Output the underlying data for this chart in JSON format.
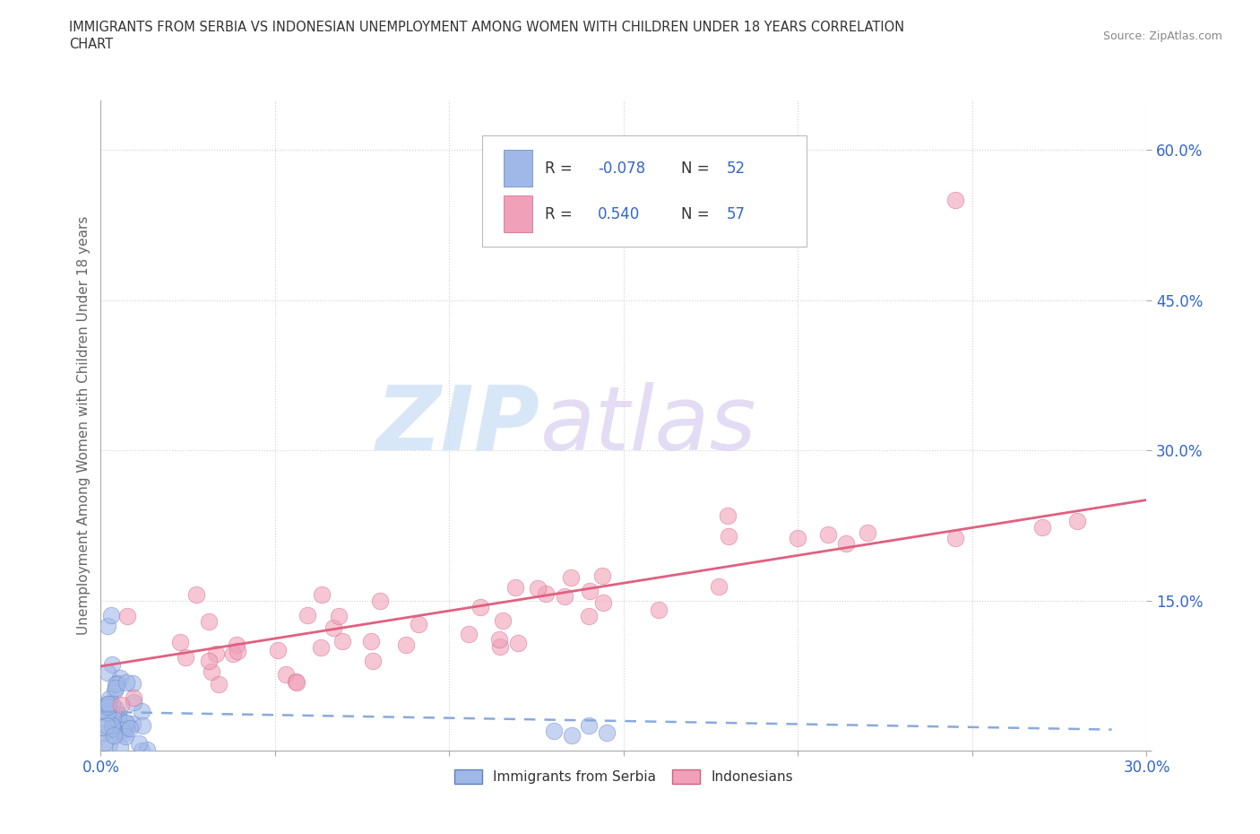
{
  "title_line1": "IMMIGRANTS FROM SERBIA VS INDONESIAN UNEMPLOYMENT AMONG WOMEN WITH CHILDREN UNDER 18 YEARS CORRELATION",
  "title_line2": "CHART",
  "source": "Source: ZipAtlas.com",
  "ylabel": "Unemployment Among Women with Children Under 18 years",
  "xlim": [
    0.0,
    0.3
  ],
  "ylim": [
    0.0,
    0.65
  ],
  "x_ticks": [
    0.0,
    0.05,
    0.1,
    0.15,
    0.2,
    0.25,
    0.3
  ],
  "x_tick_labels": [
    "0.0%",
    "",
    "",
    "",
    "",
    "",
    "30.0%"
  ],
  "y_ticks": [
    0.0,
    0.15,
    0.3,
    0.45,
    0.6
  ],
  "y_tick_labels": [
    "",
    "15.0%",
    "30.0%",
    "45.0%",
    "60.0%"
  ],
  "grid_color": "#d0d0d0",
  "background_color": "#ffffff",
  "serbia_color": "#a0b8e8",
  "serbia_edge_color": "#6080c0",
  "indonesia_color": "#f0a0b8",
  "indonesia_edge_color": "#d06080",
  "serbia_R": -0.078,
  "serbia_N": 52,
  "indonesia_R": 0.54,
  "indonesia_N": 57,
  "serbia_line_color": "#88aadd",
  "indonesia_line_color": "#e06080",
  "tick_color": "#3366cc",
  "title_color": "#333333",
  "source_color": "#888888",
  "ylabel_color": "#666666"
}
